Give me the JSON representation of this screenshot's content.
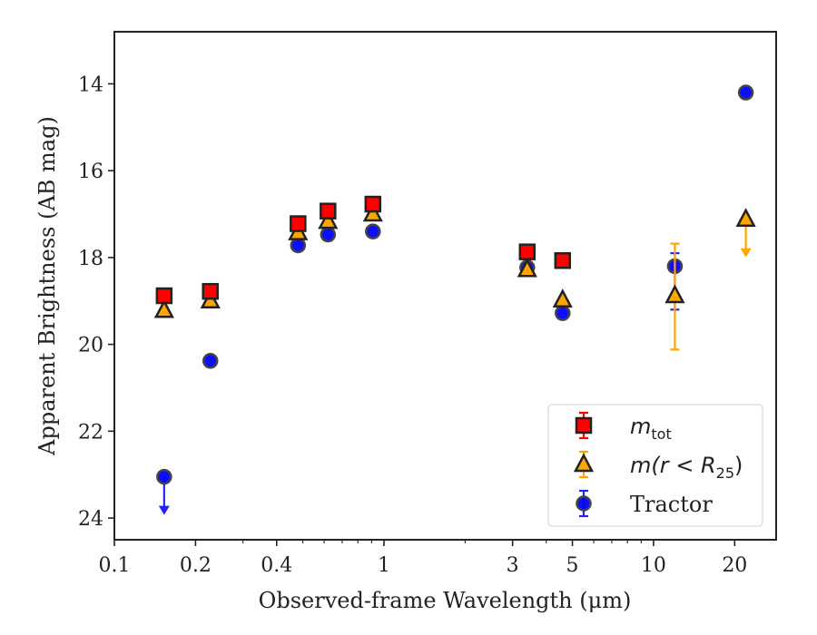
{
  "chart_data": {
    "type": "scatter",
    "xlabel": "Observed-frame Wavelength (μm)",
    "ylabel": "Apparent Brightness (AB mag)",
    "x_scale": "log",
    "xlim": [
      0.1,
      28.5
    ],
    "ylim": [
      24.5,
      12.8
    ],
    "y_inverted": true,
    "x_ticks": [
      {
        "value": 0.1,
        "label": "0.1"
      },
      {
        "value": 0.2,
        "label": "0.2"
      },
      {
        "value": 0.4,
        "label": "0.4"
      },
      {
        "value": 1,
        "label": "1"
      },
      {
        "value": 3,
        "label": "3"
      },
      {
        "value": 5,
        "label": "5"
      },
      {
        "value": 10,
        "label": "10"
      },
      {
        "value": 20,
        "label": "20"
      }
    ],
    "y_ticks": [
      {
        "value": 14,
        "label": "14"
      },
      {
        "value": 16,
        "label": "16"
      },
      {
        "value": 18,
        "label": "18"
      },
      {
        "value": 20,
        "label": "20"
      },
      {
        "value": 22,
        "label": "22"
      },
      {
        "value": 24,
        "label": "24"
      }
    ],
    "grid": false,
    "legend_position": "lower-right",
    "series": [
      {
        "key": "mtot",
        "name": "m_tot",
        "legend_main": "m",
        "legend_sub": "tot",
        "marker": "square",
        "color": "#ff0000",
        "edge_color": "#222222",
        "errbar_color": "#ff0000",
        "points": [
          {
            "x": 0.153,
            "y": 18.88
          },
          {
            "x": 0.227,
            "y": 18.78
          },
          {
            "x": 0.48,
            "y": 17.22
          },
          {
            "x": 0.62,
            "y": 16.93
          },
          {
            "x": 0.91,
            "y": 16.77
          },
          {
            "x": 3.4,
            "y": 17.87
          },
          {
            "x": 4.6,
            "y": 18.07
          }
        ]
      },
      {
        "key": "mr25",
        "name": "m(r < R_25)",
        "legend_main": "m(r < R",
        "legend_sub": "25",
        "legend_tail": ")",
        "marker": "triangle",
        "color": "#ffa500",
        "edge_color": "#222222",
        "errbar_color": "#ffa500",
        "points": [
          {
            "x": 0.153,
            "y": 19.22
          },
          {
            "x": 0.227,
            "y": 19.0
          },
          {
            "x": 0.48,
            "y": 17.43
          },
          {
            "x": 0.62,
            "y": 17.17
          },
          {
            "x": 0.91,
            "y": 17.0
          },
          {
            "x": 3.4,
            "y": 18.28
          },
          {
            "x": 4.6,
            "y": 18.98
          },
          {
            "x": 12.0,
            "y": 18.88,
            "err_low": 17.68,
            "err_high": 20.12
          },
          {
            "x": 22.0,
            "y": 17.12,
            "upper_limit": true
          }
        ]
      },
      {
        "key": "tractor",
        "name": "Tractor",
        "legend_main": "Tractor",
        "marker": "circle",
        "color": "#0000ff",
        "edge_color": "#444444",
        "errbar_color": "#2222ff",
        "points": [
          {
            "x": 0.153,
            "y": 23.05,
            "upper_limit": true
          },
          {
            "x": 0.227,
            "y": 20.38
          },
          {
            "x": 0.48,
            "y": 17.72
          },
          {
            "x": 0.62,
            "y": 17.47
          },
          {
            "x": 0.91,
            "y": 17.4
          },
          {
            "x": 3.4,
            "y": 18.23
          },
          {
            "x": 4.6,
            "y": 19.28
          },
          {
            "x": 12.0,
            "y": 18.2,
            "err_low": 17.9,
            "err_high": 19.2
          },
          {
            "x": 22.0,
            "y": 14.2
          }
        ]
      }
    ]
  }
}
